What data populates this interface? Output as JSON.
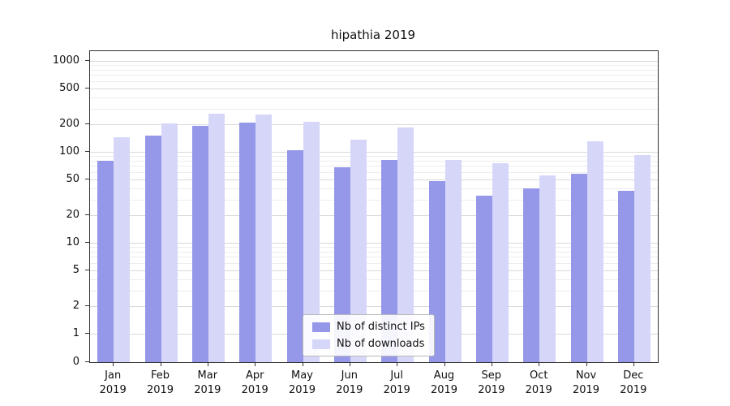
{
  "title": "hipathia 2019",
  "chart_data": {
    "type": "bar",
    "categories": [
      "Jan\n2019",
      "Feb\n2019",
      "Mar\n2019",
      "Apr\n2019",
      "May\n2019",
      "Jun\n2019",
      "Jul\n2019",
      "Aug\n2019",
      "Sep\n2019",
      "Oct\n2019",
      "Nov\n2019",
      "Dec\n2019"
    ],
    "series": [
      {
        "name": "Nb of distinct IPs",
        "color": "#9597e8",
        "values": [
          80,
          150,
          195,
          210,
          105,
          68,
          82,
          48,
          33,
          40,
          58,
          37
        ]
      },
      {
        "name": "Nb of downloads",
        "color": "#d6d7f8",
        "values": [
          145,
          205,
          265,
          260,
          215,
          135,
          185,
          82,
          75,
          55,
          130,
          92
        ]
      }
    ],
    "yscale": "log",
    "yticks": [
      0,
      1,
      2,
      5,
      10,
      20,
      50,
      100,
      200,
      500,
      1000
    ],
    "ylim": [
      0,
      1000
    ],
    "grid": "horizontal",
    "legend_position": "lower center"
  }
}
